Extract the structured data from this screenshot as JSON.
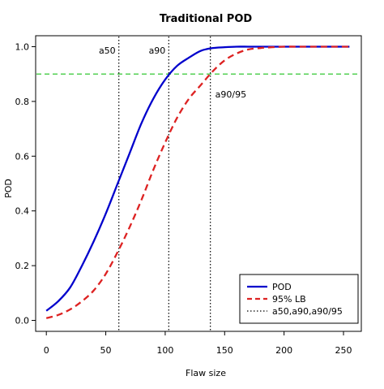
{
  "chart_data": {
    "type": "line",
    "title": "Traditional POD",
    "xlabel": "Flaw size",
    "ylabel": "POD",
    "xlim": [
      -9,
      265
    ],
    "ylim": [
      -0.04,
      1.04
    ],
    "x_ticks": [
      0,
      50,
      100,
      150,
      200,
      250
    ],
    "y_ticks": [
      0.0,
      0.2,
      0.4,
      0.6,
      0.8,
      1.0
    ],
    "y_tick_labels": [
      "0.0",
      "0.2",
      "0.4",
      "0.6",
      "0.8",
      "1.0"
    ],
    "grid": false,
    "legend_position": "bottom-right",
    "series": [
      {
        "name": "POD",
        "color": "#0000cc",
        "line_style": "solid",
        "x": [
          0,
          10,
          20,
          30,
          40,
          50,
          60,
          70,
          80,
          90,
          100,
          110,
          120,
          130,
          140,
          150,
          160,
          170,
          180,
          190,
          200,
          210,
          220,
          230,
          240,
          255
        ],
        "y": [
          0.035,
          0.07,
          0.12,
          0.2,
          0.29,
          0.39,
          0.5,
          0.61,
          0.72,
          0.81,
          0.88,
          0.93,
          0.96,
          0.985,
          0.995,
          0.998,
          1.0,
          1.0,
          1.0,
          1.0,
          1.0,
          1.0,
          1.0,
          1.0,
          1.0,
          1.0
        ]
      },
      {
        "name": "95% LB",
        "color": "#dd2222",
        "line_style": "dashed",
        "x": [
          0,
          10,
          20,
          30,
          40,
          50,
          60,
          70,
          80,
          90,
          100,
          110,
          120,
          130,
          140,
          150,
          160,
          170,
          180,
          190,
          200,
          210,
          220,
          230,
          240,
          255
        ],
        "y": [
          0.008,
          0.02,
          0.04,
          0.07,
          0.11,
          0.17,
          0.25,
          0.34,
          0.44,
          0.55,
          0.65,
          0.74,
          0.81,
          0.86,
          0.91,
          0.95,
          0.975,
          0.99,
          0.995,
          0.998,
          1.0,
          1.0,
          1.0,
          1.0,
          1.0,
          1.0
        ]
      }
    ],
    "vertical_lines": [
      {
        "x": 61,
        "label": "a50"
      },
      {
        "x": 103,
        "label": "a90"
      },
      {
        "x": 138,
        "label": "a90/95"
      }
    ],
    "threshold_line": {
      "y": 0.9,
      "color": "#44cc44",
      "line_style": "dashed"
    },
    "legend": {
      "pod_label": "POD",
      "lb_label": "95% LB",
      "marks_label": "a50,a90,a90/95"
    }
  }
}
